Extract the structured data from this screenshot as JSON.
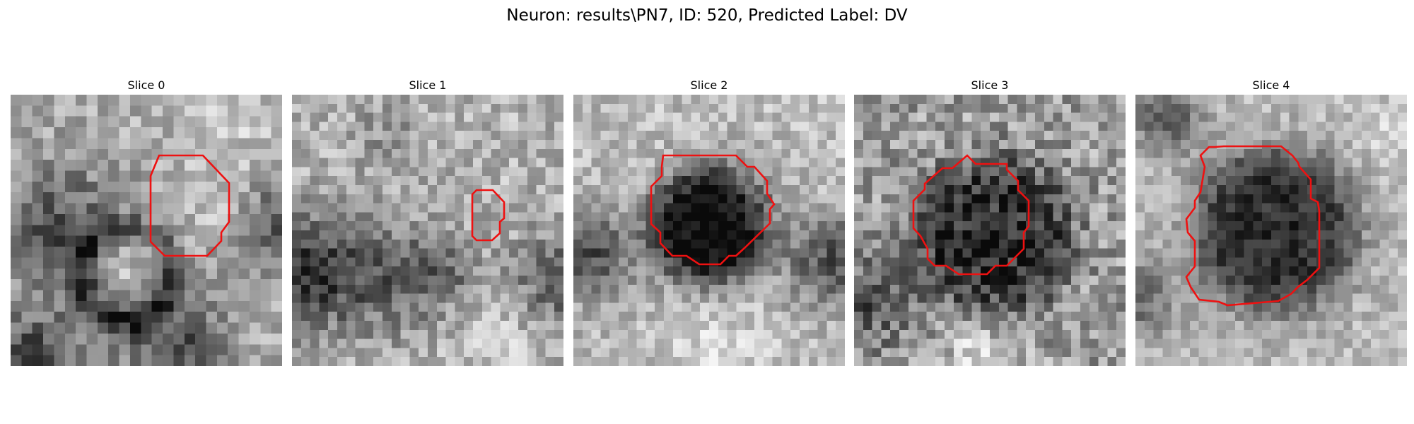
{
  "title": "Neuron: results\\PN7, ID: 520, Predicted Label: DV",
  "colors": {
    "contour": "#ee1111",
    "colormap": "gray"
  },
  "panels": [
    {
      "title": "Slice 0"
    },
    {
      "title": "Slice 1"
    },
    {
      "title": "Slice 2"
    },
    {
      "title": "Slice 3"
    },
    {
      "title": "Slice 4"
    }
  ]
}
